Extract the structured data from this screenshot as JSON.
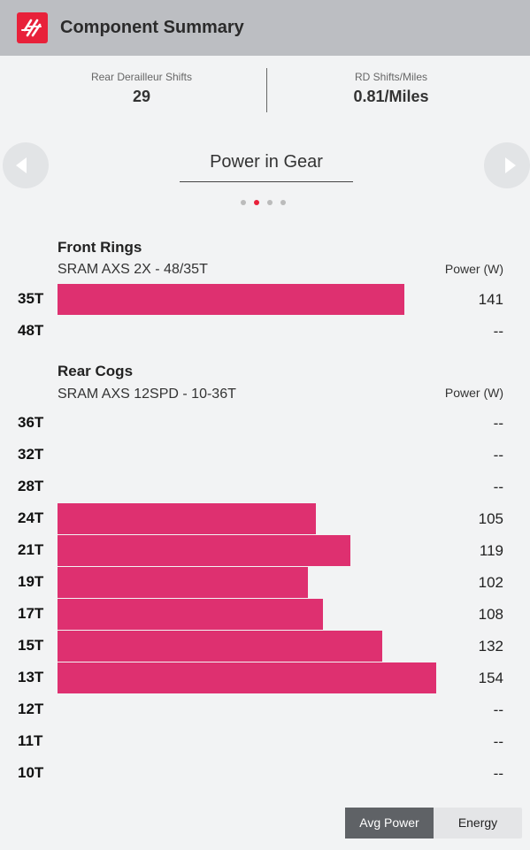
{
  "header": {
    "title": "Component Summary",
    "brand_color": "#e8213a"
  },
  "stats": [
    {
      "label": "Rear Derailleur Shifts",
      "value": "29"
    },
    {
      "label": "RD Shifts/Miles",
      "value": "0.81/Miles"
    }
  ],
  "carousel": {
    "title": "Power in Gear",
    "page_count": 4,
    "active_page": 2,
    "prev_icon": "chevron-left-icon",
    "next_icon": "chevron-right-icon"
  },
  "bar_color": "#de3070",
  "front": {
    "title": "Front Rings",
    "subtitle": "SRAM AXS 2X - 48/35T",
    "column_header": "Power (W)",
    "rows": [
      {
        "gear": "35T",
        "value": "141"
      },
      {
        "gear": "48T",
        "value": "--"
      }
    ]
  },
  "rear": {
    "title": "Rear Cogs",
    "subtitle": "SRAM AXS 12SPD - 10-36T",
    "column_header": "Power (W)",
    "rows": [
      {
        "gear": "36T",
        "value": "--"
      },
      {
        "gear": "32T",
        "value": "--"
      },
      {
        "gear": "28T",
        "value": "--"
      },
      {
        "gear": "24T",
        "value": "105"
      },
      {
        "gear": "21T",
        "value": "119"
      },
      {
        "gear": "19T",
        "value": "102"
      },
      {
        "gear": "17T",
        "value": "108"
      },
      {
        "gear": "15T",
        "value": "132"
      },
      {
        "gear": "13T",
        "value": "154"
      },
      {
        "gear": "12T",
        "value": "--"
      },
      {
        "gear": "11T",
        "value": "--"
      },
      {
        "gear": "10T",
        "value": "--"
      }
    ]
  },
  "toggle": {
    "options": [
      "Avg Power",
      "Energy"
    ],
    "selected": "Avg Power"
  }
}
